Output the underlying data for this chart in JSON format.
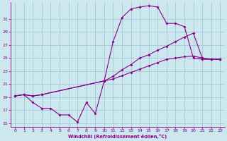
{
  "xlabel": "Windchill (Refroidissement éolien,°C)",
  "xlim": [
    -0.5,
    23.5
  ],
  "ylim": [
    14.5,
    33.5
  ],
  "yticks": [
    15,
    17,
    19,
    21,
    23,
    25,
    27,
    29,
    31
  ],
  "xticks": [
    0,
    1,
    2,
    3,
    4,
    5,
    6,
    7,
    8,
    9,
    10,
    11,
    12,
    13,
    14,
    15,
    16,
    17,
    18,
    19,
    20,
    21,
    22,
    23
  ],
  "background_color": "#cce8ee",
  "grid_color": "#a0c8d8",
  "line_color": "#880088",
  "line1_x": [
    0,
    1,
    2,
    3,
    4,
    5,
    6,
    7,
    8,
    9,
    10,
    11,
    12,
    13,
    14,
    15,
    16,
    17,
    18,
    19,
    20,
    21,
    22,
    23
  ],
  "line1_y": [
    19.2,
    19.4,
    18.2,
    17.3,
    17.3,
    16.3,
    16.3,
    15.2,
    18.2,
    16.5,
    21.5,
    27.5,
    31.2,
    32.5,
    32.8,
    33.0,
    32.8,
    30.3,
    30.3,
    29.8,
    25.0,
    24.8,
    24.8,
    24.8
  ],
  "line2_x": [
    0,
    1,
    2,
    3,
    10,
    11,
    12,
    13,
    14,
    15,
    16,
    17,
    18,
    19,
    20,
    21,
    22,
    23
  ],
  "line2_y": [
    19.2,
    19.4,
    19.2,
    19.4,
    21.5,
    22.2,
    23.2,
    24.0,
    25.0,
    25.5,
    26.2,
    26.8,
    27.5,
    28.2,
    28.8,
    25.0,
    24.8,
    24.8
  ],
  "line3_x": [
    0,
    1,
    2,
    3,
    10,
    11,
    12,
    13,
    14,
    15,
    16,
    17,
    18,
    19,
    20,
    21,
    22,
    23
  ],
  "line3_y": [
    19.2,
    19.4,
    19.2,
    19.4,
    21.5,
    21.8,
    22.3,
    22.8,
    23.3,
    23.8,
    24.3,
    24.8,
    25.0,
    25.2,
    25.3,
    25.0,
    24.8,
    24.8
  ]
}
